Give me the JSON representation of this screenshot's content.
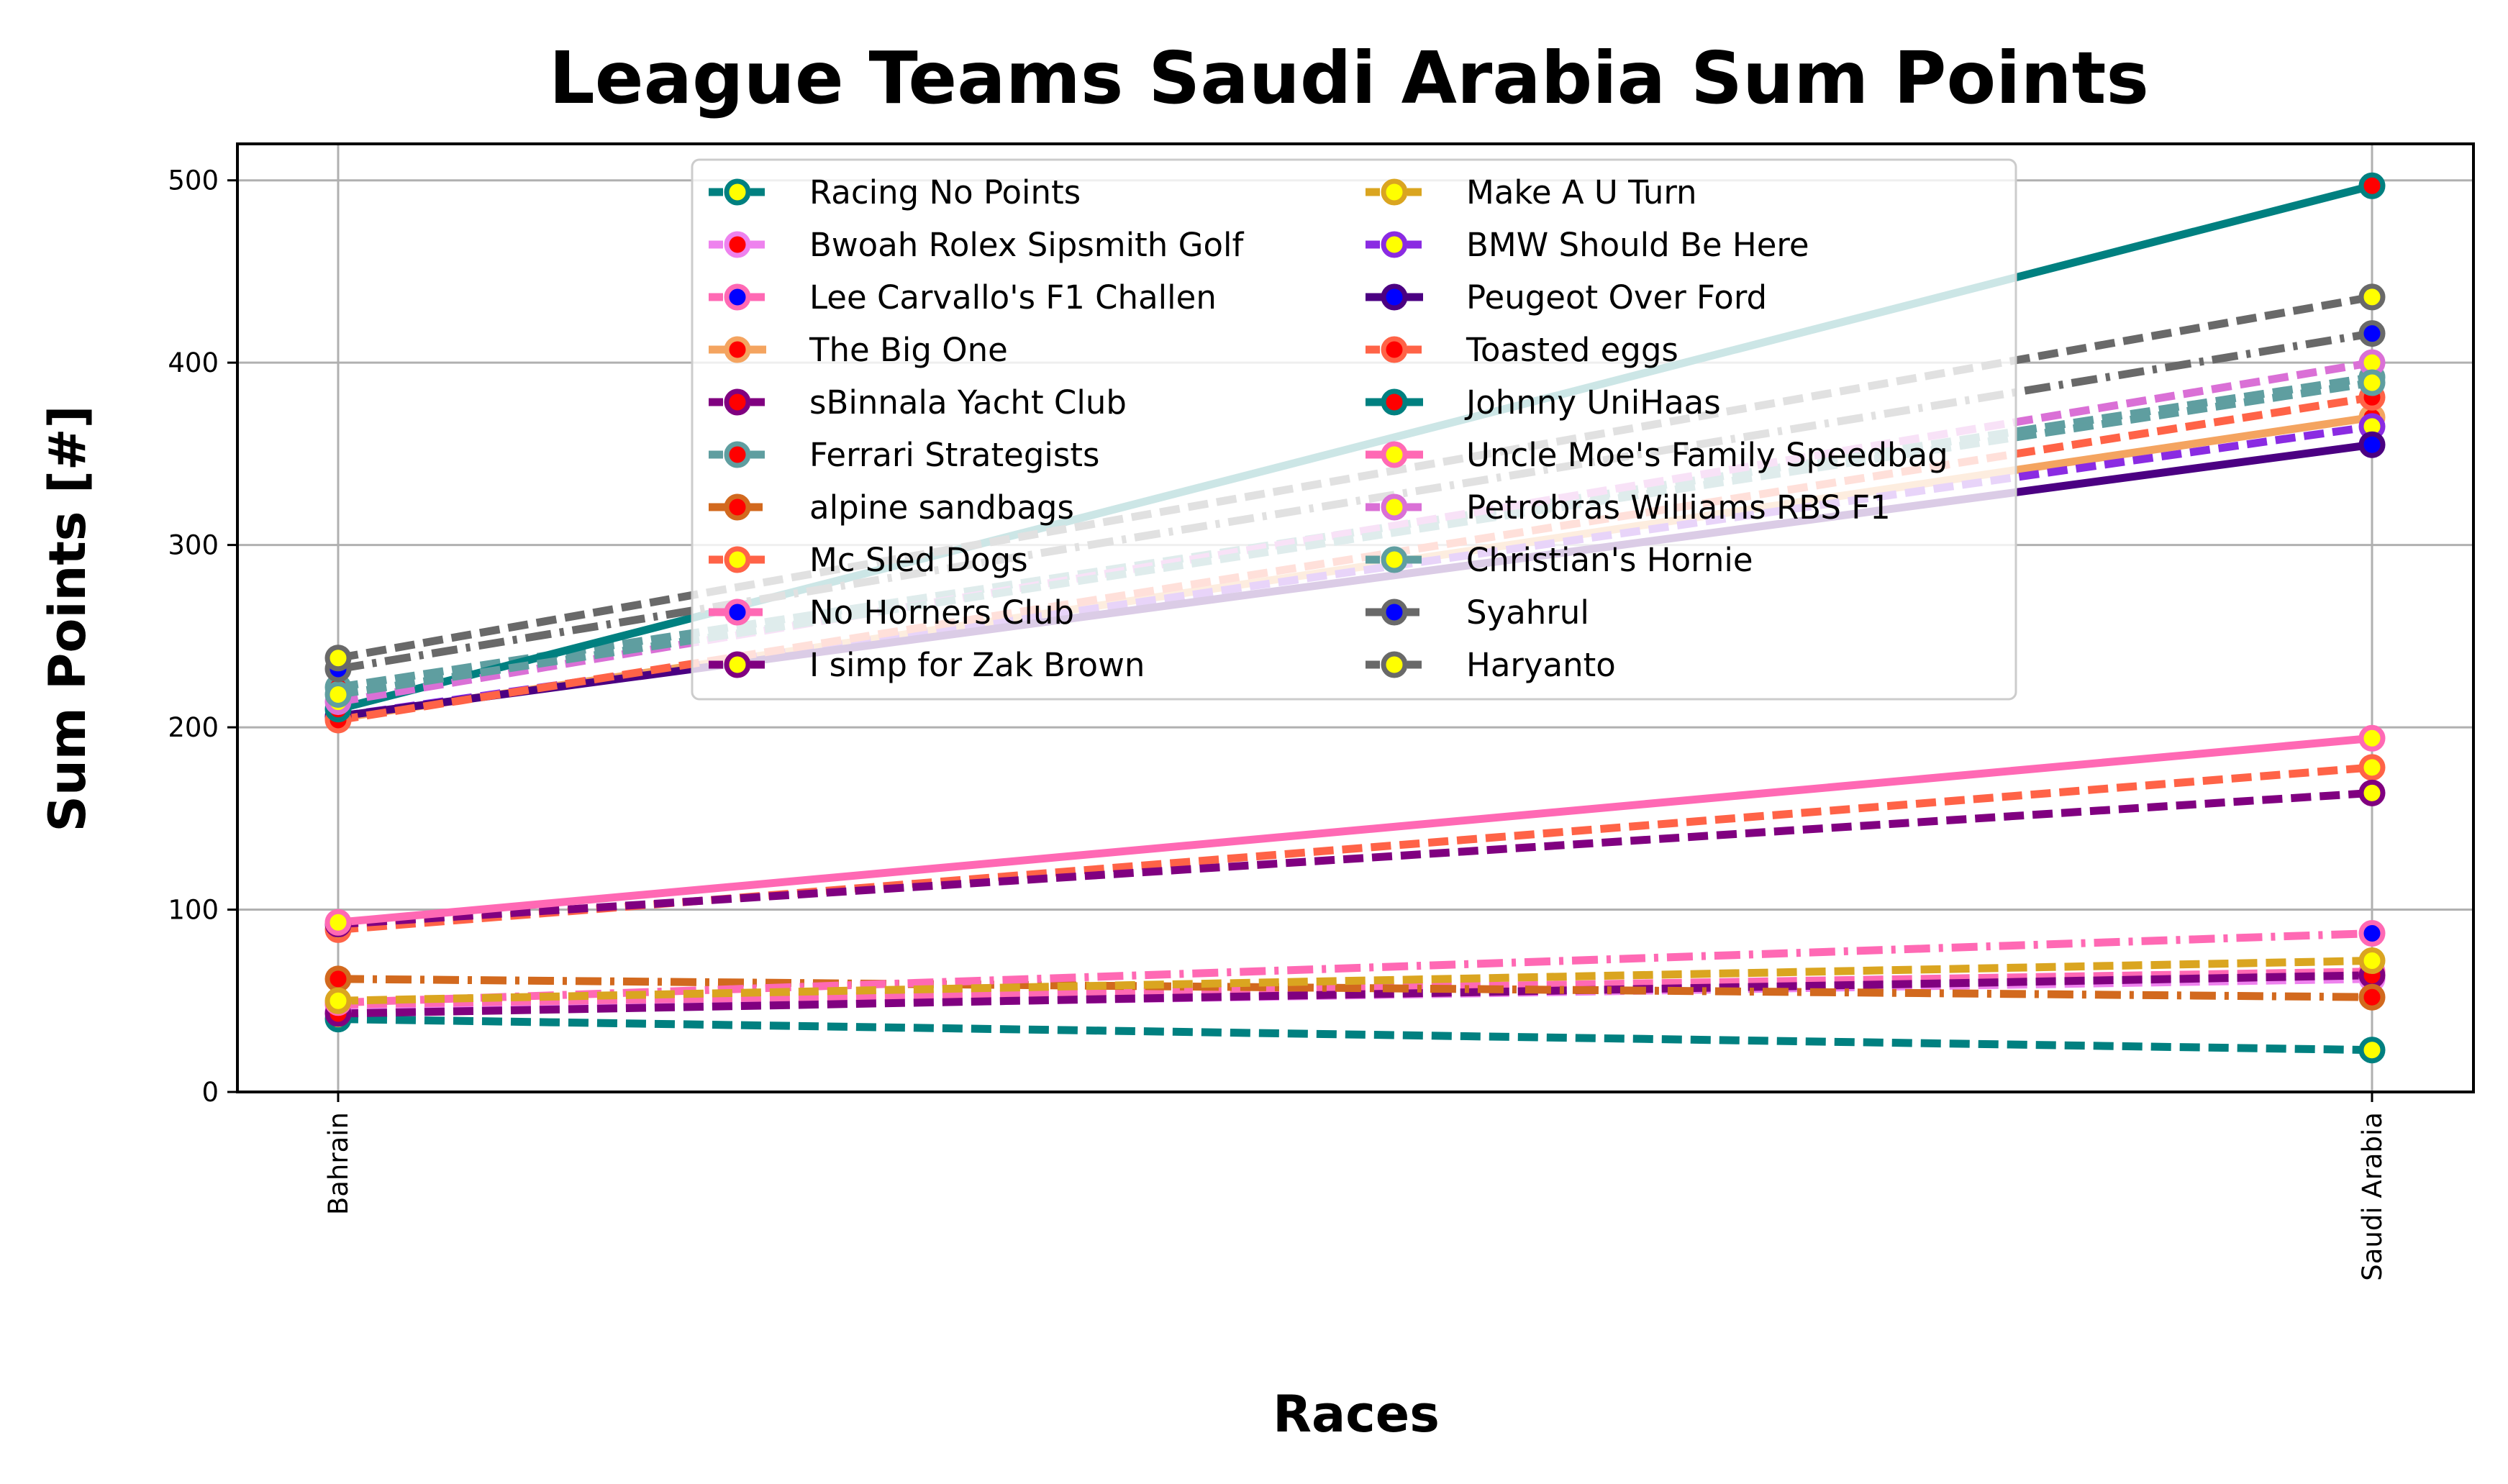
{
  "chart_data": {
    "type": "line",
    "title": "League Teams Saudi Arabia Sum Points",
    "xlabel": "Races",
    "ylabel": "Sum Points [#]",
    "categories": [
      "Bahrain",
      "Saudi Arabia"
    ],
    "ylim": [
      0,
      520
    ],
    "yticks": [
      0,
      100,
      200,
      300,
      400,
      500
    ],
    "grid": true,
    "legend_position": "upper center, 2 columns",
    "series": [
      {
        "name": "Racing No Points",
        "values": [
          40,
          23
        ],
        "color": "#008080",
        "dash": "dashed",
        "marker_face": "#FFFF00"
      },
      {
        "name": "Bwoah Rolex Sipsmith Golf",
        "values": [
          44,
          62
        ],
        "color": "#EE82EE",
        "dash": "dashed",
        "marker_face": "#FF0000"
      },
      {
        "name": "Lee Carvallo's F1 Challen",
        "values": [
          48,
          66
        ],
        "color": "#FF69B4",
        "dash": "dashed",
        "marker_face": "#0000FF"
      },
      {
        "name": "The Big One",
        "values": [
          205,
          370
        ],
        "color": "#F4A460",
        "dash": "solid",
        "marker_face": "#FF0000"
      },
      {
        "name": "sBinnala Yacht Club",
        "values": [
          43,
          64
        ],
        "color": "#800080",
        "dash": "dashed",
        "marker_face": "#FF0000"
      },
      {
        "name": "Ferrari Strategists",
        "values": [
          222,
          392
        ],
        "color": "#5F9EA0",
        "dash": "dashed",
        "marker_face": "#FF0000"
      },
      {
        "name": "alpine sandbags",
        "values": [
          62,
          52
        ],
        "color": "#D2691E",
        "dash": "dashdot",
        "marker_face": "#FF0000"
      },
      {
        "name": "Mc Sled Dogs",
        "values": [
          89,
          178
        ],
        "color": "#FF6347",
        "dash": "dashed",
        "marker_face": "#FFFF00"
      },
      {
        "name": "No Horners Club",
        "values": [
          49,
          87
        ],
        "color": "#FF69B4",
        "dash": "dashdot",
        "marker_face": "#0000FF"
      },
      {
        "name": "I simp for Zak Brown",
        "values": [
          92,
          164
        ],
        "color": "#800080",
        "dash": "dashed",
        "marker_face": "#FFFF00"
      },
      {
        "name": "Make A U Turn",
        "values": [
          50,
          72
        ],
        "color": "#DAA520",
        "dash": "dashed",
        "marker_face": "#FFFF00"
      },
      {
        "name": "BMW Should Be Here",
        "values": [
          206,
          365
        ],
        "color": "#8A2BE2",
        "dash": "dashed",
        "marker_face": "#FFFF00"
      },
      {
        "name": "Peugeot Over Ford",
        "values": [
          206,
          355
        ],
        "color": "#4B0082",
        "dash": "solid",
        "marker_face": "#0000FF"
      },
      {
        "name": "Toasted eggs",
        "values": [
          204,
          381
        ],
        "color": "#FF6347",
        "dash": "dashed",
        "marker_face": "#FF0000"
      },
      {
        "name": "Johnny UniHaas",
        "values": [
          210,
          497
        ],
        "color": "#008080",
        "dash": "solid",
        "marker_face": "#FF0000"
      },
      {
        "name": "Uncle Moe's Family Speedbag",
        "values": [
          93,
          194
        ],
        "color": "#FF69B4",
        "dash": "solid",
        "marker_face": "#FFFF00"
      },
      {
        "name": "Petrobras Williams RBS F1",
        "values": [
          214,
          400
        ],
        "color": "#DA70D6",
        "dash": "dashed",
        "marker_face": "#FFFF00"
      },
      {
        "name": "Christian's Hornie",
        "values": [
          218,
          389
        ],
        "color": "#5F9EA0",
        "dash": "dashed",
        "marker_face": "#FFFF00"
      },
      {
        "name": "Syahrul",
        "values": [
          232,
          416
        ],
        "color": "#696969",
        "dash": "dashdot",
        "marker_face": "#0000FF"
      },
      {
        "name": "Haryanto",
        "values": [
          238,
          436
        ],
        "color": "#696969",
        "dash": "dashed",
        "marker_face": "#FFFF00"
      }
    ]
  }
}
